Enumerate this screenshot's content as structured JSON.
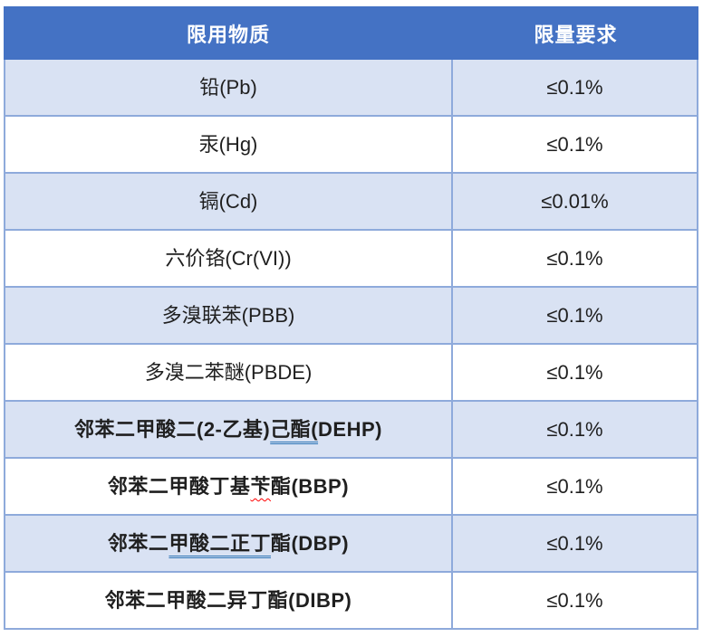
{
  "table": {
    "columns": [
      {
        "label": "限用物质"
      },
      {
        "label": "限量要求"
      }
    ],
    "rows": [
      {
        "substance": [
          {
            "t": "铅(Pb)"
          }
        ],
        "limit": "≤0.1%",
        "bold": false,
        "shaded": true
      },
      {
        "substance": [
          {
            "t": "汞(Hg)"
          }
        ],
        "limit": "≤0.1%",
        "bold": false,
        "shaded": false
      },
      {
        "substance": [
          {
            "t": "镉(Cd)"
          }
        ],
        "limit": "≤0.01%",
        "bold": false,
        "shaded": true
      },
      {
        "substance": [
          {
            "t": "六价铬(Cr(VI))"
          }
        ],
        "limit": "≤0.1%",
        "bold": false,
        "shaded": false
      },
      {
        "substance": [
          {
            "t": "多溴联苯(PBB)"
          }
        ],
        "limit": "≤0.1%",
        "bold": false,
        "shaded": true
      },
      {
        "substance": [
          {
            "t": "多溴二苯醚(PBDE)"
          }
        ],
        "limit": "≤0.1%",
        "bold": false,
        "shaded": false
      },
      {
        "substance": [
          {
            "t": "邻苯二甲酸二(2-乙基)"
          },
          {
            "t": "己酯(",
            "u": "blue-double"
          },
          {
            "t": "DEHP)"
          }
        ],
        "limit": "≤0.1%",
        "bold": true,
        "shaded": true
      },
      {
        "substance": [
          {
            "t": "邻苯二甲酸丁基"
          },
          {
            "t": "苄",
            "u": "red-wavy"
          },
          {
            "t": "酯(BBP)"
          }
        ],
        "limit": "≤0.1%",
        "bold": true,
        "shaded": false
      },
      {
        "substance": [
          {
            "t": "邻苯二"
          },
          {
            "t": "甲酸二正丁",
            "u": "blue-double"
          },
          {
            "t": "酯(DBP)"
          }
        ],
        "limit": "≤0.1%",
        "bold": true,
        "shaded": true
      },
      {
        "substance": [
          {
            "t": "邻苯二甲酸二异丁酯(DIBP)"
          }
        ],
        "limit": "≤0.1%",
        "bold": true,
        "shaded": false
      }
    ],
    "colors": {
      "header_bg": "#4472C4",
      "header_text": "#FFFFFF",
      "shaded_row_bg": "#D9E2F3",
      "border": "#8EAADB",
      "text": "#1F1F1F",
      "grammar_underline": "#2E75B6",
      "spelling_underline": "#FF0000"
    }
  }
}
